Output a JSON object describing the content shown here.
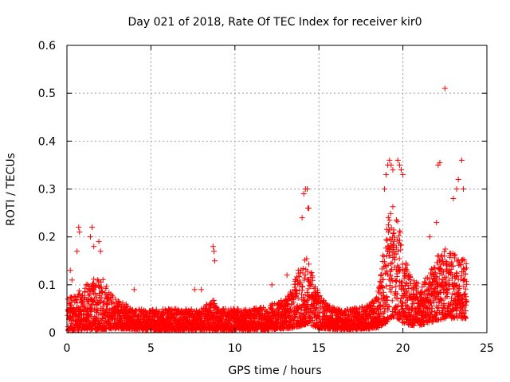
{
  "chart_data": {
    "type": "scatter",
    "title": "Day 021 of 2018, Rate Of TEC Index for receiver kir0",
    "xlabel": "GPS time / hours",
    "ylabel": "ROTI / TECUs",
    "xlim": [
      0,
      25
    ],
    "ylim": [
      0,
      0.6
    ],
    "xticks": [
      "0",
      "5",
      "10",
      "15",
      "20",
      "25"
    ],
    "yticks": [
      "0",
      "0.1",
      "0.2",
      "0.3",
      "0.4",
      "0.5",
      "0.6"
    ],
    "grid": true,
    "marker": "+",
    "color": "#ff0000",
    "series": [
      {
        "name": "ROTI",
        "profile_x": [
          0,
          0.5,
          1,
          1.5,
          2,
          2.5,
          3,
          3.5,
          4,
          5,
          6,
          7,
          8,
          8.7,
          9,
          10,
          11,
          12,
          13,
          13.5,
          14,
          14.3,
          14.6,
          15,
          15.5,
          16,
          17,
          18,
          18.5,
          19,
          19.3,
          19.7,
          20,
          20.5,
          21,
          21.5,
          22,
          22.5,
          23,
          23.5,
          23.8
        ],
        "profile_low": [
          0.004,
          0.005,
          0.005,
          0.006,
          0.007,
          0.008,
          0.008,
          0.008,
          0.007,
          0.006,
          0.006,
          0.006,
          0.006,
          0.006,
          0.006,
          0.006,
          0.006,
          0.007,
          0.008,
          0.01,
          0.015,
          0.018,
          0.015,
          0.01,
          0.008,
          0.007,
          0.007,
          0.008,
          0.01,
          0.02,
          0.03,
          0.03,
          0.02,
          0.015,
          0.015,
          0.02,
          0.025,
          0.03,
          0.03,
          0.03,
          0.03
        ],
        "profile_high": [
          0.07,
          0.08,
          0.1,
          0.11,
          0.12,
          0.09,
          0.07,
          0.06,
          0.05,
          0.05,
          0.05,
          0.05,
          0.05,
          0.07,
          0.05,
          0.05,
          0.05,
          0.06,
          0.07,
          0.1,
          0.16,
          0.18,
          0.12,
          0.08,
          0.06,
          0.05,
          0.05,
          0.06,
          0.08,
          0.22,
          0.27,
          0.26,
          0.17,
          0.12,
          0.1,
          0.12,
          0.16,
          0.18,
          0.17,
          0.16,
          0.15
        ],
        "x": [
          0.2,
          0.3,
          0.6,
          0.7,
          0.75,
          1.4,
          1.5,
          1.6,
          1.9,
          2.0,
          4.0,
          7.6,
          8.0,
          8.7,
          8.75,
          8.8,
          12.2,
          13.1,
          14.0,
          14.1,
          14.2,
          14.3,
          14.35,
          14.4,
          18.9,
          19.0,
          19.1,
          19.2,
          19.3,
          19.4,
          19.7,
          19.8,
          19.9,
          20.0,
          21.6,
          22.0,
          22.1,
          22.2,
          22.5,
          23.0,
          23.2,
          23.3,
          23.5,
          23.6
        ],
        "y": [
          0.13,
          0.11,
          0.17,
          0.22,
          0.21,
          0.2,
          0.22,
          0.18,
          0.19,
          0.17,
          0.09,
          0.09,
          0.09,
          0.18,
          0.17,
          0.15,
          0.1,
          0.12,
          0.24,
          0.29,
          0.3,
          0.3,
          0.26,
          0.26,
          0.3,
          0.33,
          0.35,
          0.36,
          0.35,
          0.34,
          0.36,
          0.35,
          0.34,
          0.33,
          0.2,
          0.23,
          0.35,
          0.355,
          0.51,
          0.28,
          0.3,
          0.32,
          0.36,
          0.3
        ]
      }
    ]
  }
}
